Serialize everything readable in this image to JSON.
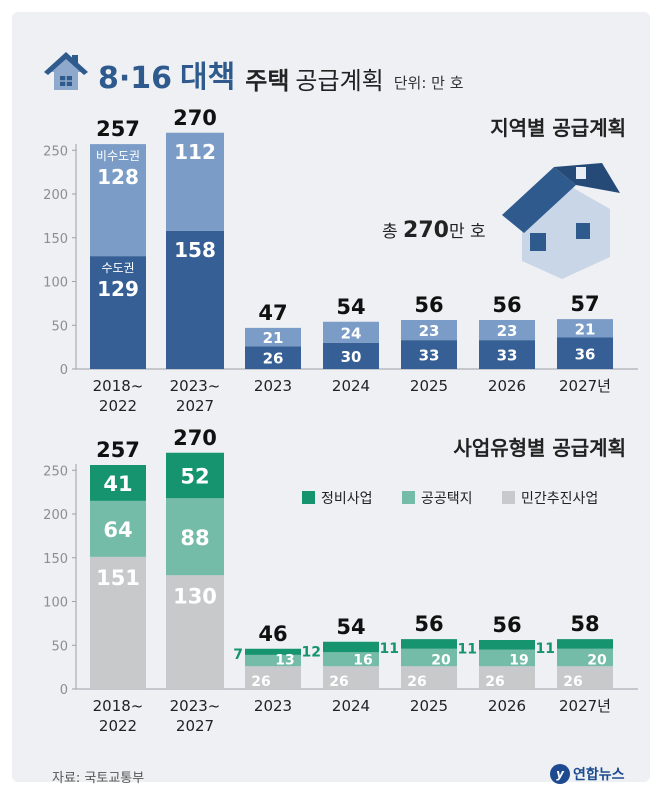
{
  "title": {
    "date": "8·16",
    "plan": "대책",
    "main": "주택",
    "sub": "공급계획",
    "unit": "단위: 만 호"
  },
  "colors": {
    "regional_capital": "#355f95",
    "regional_noncapital": "#7a9cc6",
    "type_redev": "#16936f",
    "type_public": "#74bca7",
    "type_private": "#c8c9cb",
    "accent": "#2f5a8e"
  },
  "chart_data": [
    {
      "type": "bar",
      "stacked": true,
      "title": "지역별 공급계획",
      "categories": [
        [
          "2018~",
          "2022"
        ],
        [
          "2023~",
          "2027"
        ],
        [
          "2023"
        ],
        [
          "2024"
        ],
        [
          "2025"
        ],
        [
          "2026"
        ],
        [
          "2027년"
        ]
      ],
      "series": [
        {
          "name": "수도권",
          "values": [
            129,
            158,
            26,
            30,
            33,
            33,
            36
          ]
        },
        {
          "name": "비수도권",
          "values": [
            128,
            112,
            21,
            24,
            23,
            23,
            21
          ]
        }
      ],
      "totals": [
        257,
        270,
        47,
        54,
        56,
        56,
        57
      ],
      "inline_labels": [
        {
          "bar": 0,
          "series": 0,
          "text": "수도권"
        },
        {
          "bar": 0,
          "series": 1,
          "text": "비수도권"
        }
      ],
      "annotation": {
        "prefix": "총 ",
        "value": "270",
        "suffix": "만 호"
      },
      "yticks": [
        0,
        50,
        100,
        150,
        200,
        250
      ],
      "ylim": [
        0,
        285
      ]
    },
    {
      "type": "bar",
      "stacked": true,
      "title": "사업유형별 공급계획",
      "categories": [
        [
          "2018~",
          "2022"
        ],
        [
          "2023~",
          "2027"
        ],
        [
          "2023"
        ],
        [
          "2024"
        ],
        [
          "2025"
        ],
        [
          "2026"
        ],
        [
          "2027년"
        ]
      ],
      "series": [
        {
          "name": "민간추진사업",
          "values": [
            151,
            130,
            26,
            26,
            26,
            26,
            26
          ]
        },
        {
          "name": "공공택지",
          "values": [
            64,
            88,
            13,
            16,
            20,
            19,
            20
          ]
        },
        {
          "name": "정비사업",
          "values": [
            41,
            52,
            7,
            12,
            11,
            11,
            11
          ]
        }
      ],
      "totals": [
        257,
        270,
        46,
        54,
        56,
        56,
        58
      ],
      "legend": [
        "정비사업",
        "공공택지",
        "민간추진사업"
      ],
      "yticks": [
        0,
        50,
        100,
        150,
        200,
        250
      ],
      "ylim": [
        0,
        285
      ]
    }
  ],
  "footer": {
    "source": "자료: 국토교통부",
    "logo_mark": "y",
    "logo_text": "연합뉴스"
  }
}
